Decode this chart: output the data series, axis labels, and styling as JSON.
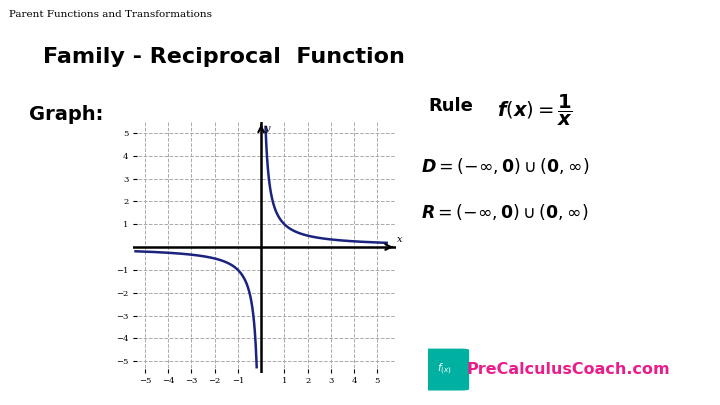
{
  "title_top": "Parent Functions and Transformations",
  "title_main": "Family - Reciprocal  Function",
  "graph_label": "Graph:",
  "curve_color": "#1a237e",
  "bg_color": "#ffffff",
  "grid_color": "#aaaaaa",
  "axis_color": "#000000",
  "xlim": [
    -5.5,
    5.8
  ],
  "ylim": [
    -5.5,
    5.5
  ],
  "xticks": [
    -5,
    -4,
    -3,
    -2,
    -1,
    1,
    2,
    3,
    4,
    5
  ],
  "yticks": [
    -5,
    -4,
    -3,
    -2,
    -1,
    1,
    2,
    3,
    4,
    5
  ],
  "logo_text": "PreCalculusCoach.com",
  "logo_color": "#e91e8c",
  "logo_bg": "#00b0a0"
}
